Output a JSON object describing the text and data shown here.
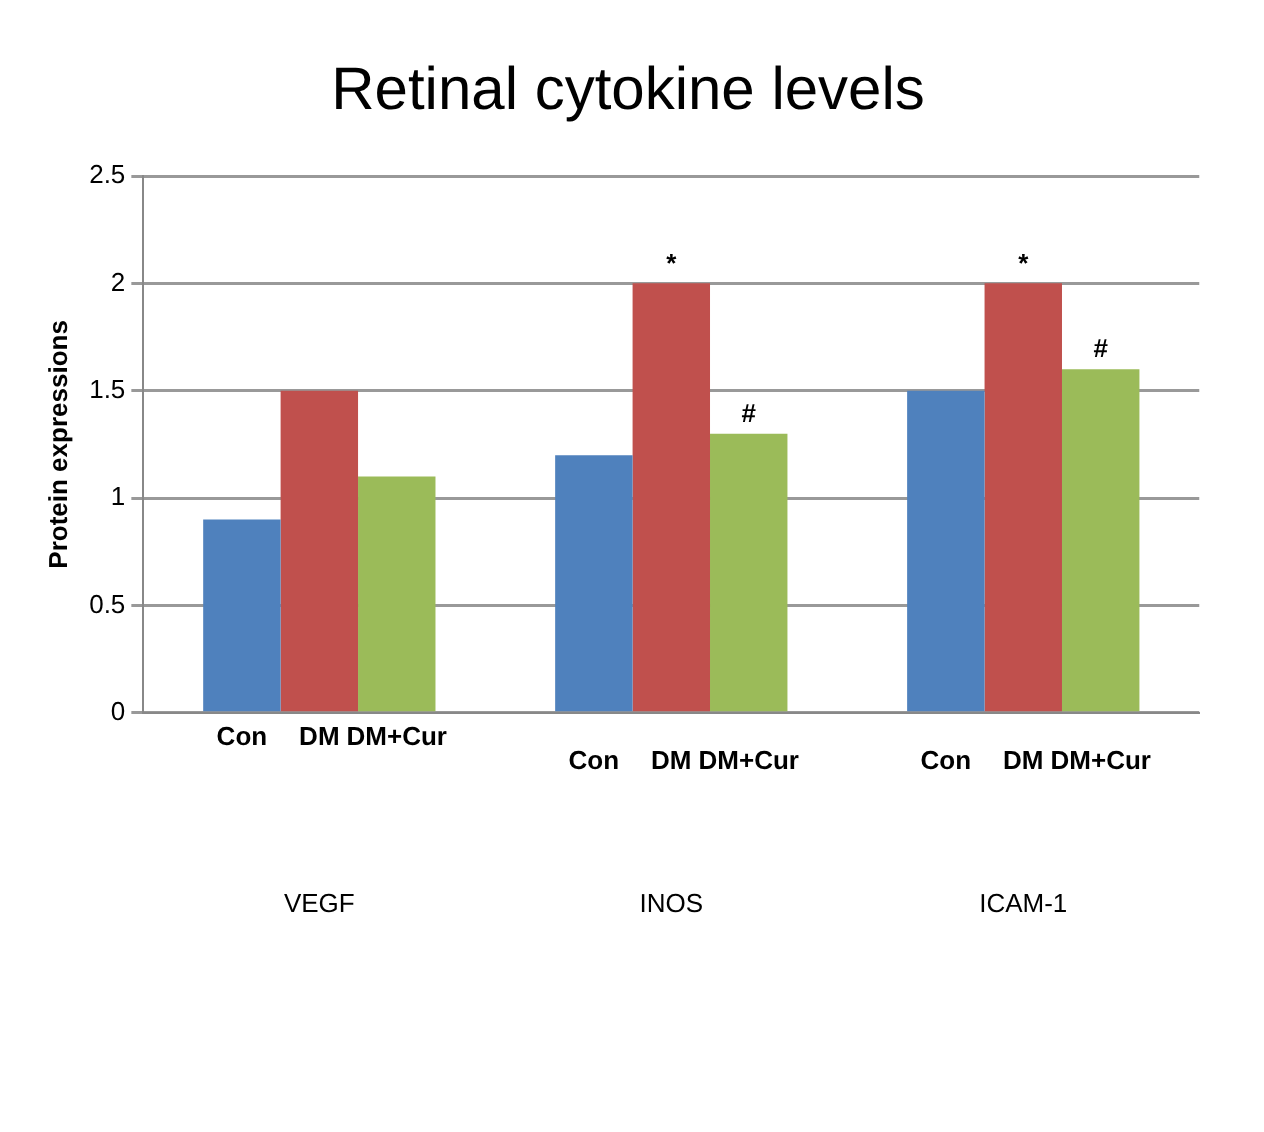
{
  "chart_data": {
    "type": "bar",
    "title": "Retinal cytokine levels",
    "ylabel": "Protein expressions",
    "categories": [
      "VEGF",
      "INOS",
      "ICAM-1"
    ],
    "series": [
      {
        "name": "Con",
        "color": "#4f81bd",
        "values": [
          0.9,
          1.2,
          1.5
        ]
      },
      {
        "name": "DM",
        "color": "#c0504d",
        "values": [
          1.5,
          2.0,
          2.0
        ]
      },
      {
        "name": "DM+Cur",
        "color": "#9bbb59",
        "values": [
          1.1,
          1.3,
          1.6
        ]
      }
    ],
    "ylim": [
      0,
      2.5
    ],
    "yticks": [
      0,
      0.5,
      1,
      1.5,
      2,
      2.5
    ],
    "grid": "y",
    "legend": false,
    "annotations": [
      {
        "text": "*",
        "x": "INOS",
        "y": 2.0
      },
      "#",
      {
        "text": "*",
        "x": "ICAM-1",
        "y": 2.0
      },
      "#"
    ]
  }
}
